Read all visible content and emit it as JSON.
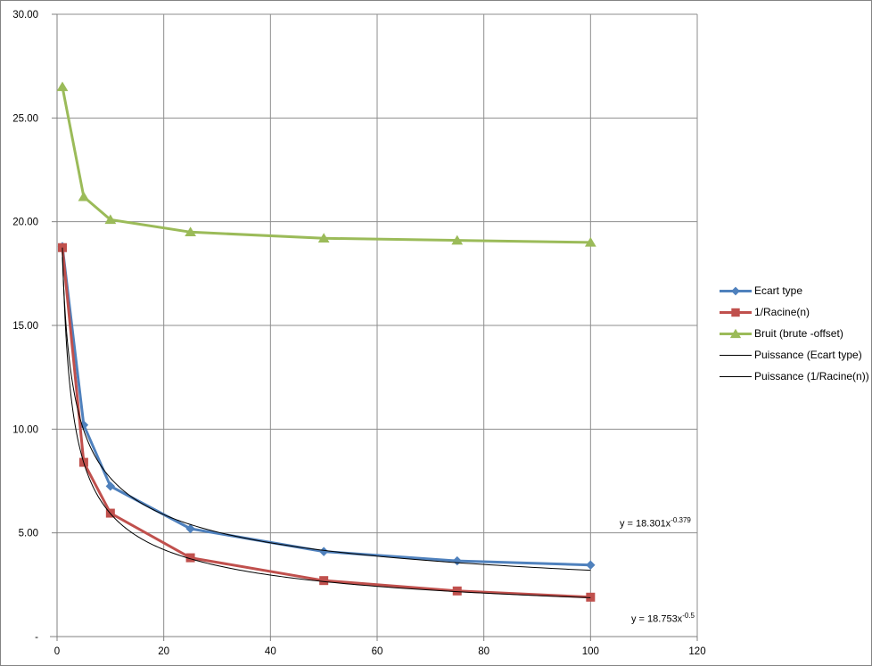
{
  "chart": {
    "background": "#FFFFFF",
    "border_color": "#848484",
    "gridline_color": "#8E8E8E",
    "axis_color": "#808080",
    "x_ticks": [
      {
        "value": 0,
        "label": "0"
      },
      {
        "value": 20,
        "label": "20"
      },
      {
        "value": 40,
        "label": "40"
      },
      {
        "value": 60,
        "label": "60"
      },
      {
        "value": 80,
        "label": "80"
      },
      {
        "value": 100,
        "label": "100"
      },
      {
        "value": 120,
        "label": "120"
      }
    ],
    "y_ticks": [
      {
        "value": 30,
        "label": "30.00"
      },
      {
        "value": 25,
        "label": "25.00"
      },
      {
        "value": 20,
        "label": "20.00"
      },
      {
        "value": 15,
        "label": "15.00"
      },
      {
        "value": 10,
        "label": "10.00"
      },
      {
        "value": 5,
        "label": "5.00"
      },
      {
        "value": 0,
        "label": "-"
      }
    ]
  },
  "chart_data": {
    "type": "line",
    "title": "",
    "xlabel": "",
    "ylabel": "",
    "xlim": [
      0,
      120
    ],
    "ylim": [
      0,
      30
    ],
    "x_tick_step": 20,
    "y_tick_step": 5,
    "grid": true,
    "legend_position": "right",
    "x": [
      1,
      5,
      10,
      25,
      50,
      75,
      100
    ],
    "series": [
      {
        "name": "Ecart type",
        "color": "#4F81BD",
        "marker": "diamond",
        "line_width": 3,
        "values": [
          18.8,
          10.2,
          7.25,
          5.2,
          4.1,
          3.65,
          3.45
        ]
      },
      {
        "name": "1/Racine(n)",
        "color": "#C0504D",
        "marker": "square",
        "line_width": 3,
        "values": [
          18.75,
          8.4,
          5.95,
          3.8,
          2.7,
          2.2,
          1.9
        ]
      },
      {
        "name": "Bruit (brute -offset)",
        "color": "#9BBB59",
        "marker": "triangle",
        "line_width": 3,
        "values": [
          26.5,
          21.2,
          20.1,
          19.5,
          19.2,
          19.1,
          19.0
        ]
      }
    ],
    "trendlines": [
      {
        "name": "Puissance (Ecart type)",
        "type": "power",
        "a": 18.301,
        "b": -0.379,
        "color": "#000000",
        "line_width": 1,
        "x_range": [
          1,
          100
        ]
      },
      {
        "name": "Puissance (1/Racine(n))",
        "type": "power",
        "a": 18.753,
        "b": -0.5,
        "color": "#000000",
        "line_width": 1,
        "x_range": [
          1,
          100
        ]
      }
    ]
  },
  "annotations": [
    {
      "base": "y = 18.301x",
      "exponent": "-0.379"
    },
    {
      "base": "y = 18.753x",
      "exponent": "-0.5"
    }
  ]
}
